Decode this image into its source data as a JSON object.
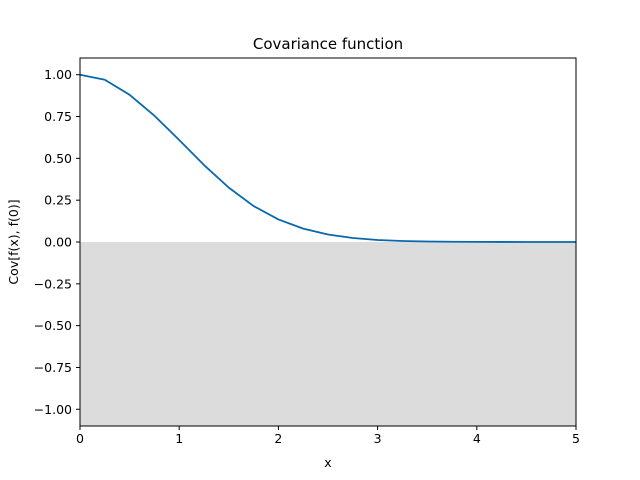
{
  "chart_data": {
    "type": "line",
    "title": "Covariance function",
    "xlabel": "x",
    "ylabel": "Cov[f(x), f(0)]",
    "xlim": [
      0,
      5
    ],
    "ylim": [
      -1.1,
      1.1
    ],
    "xticks": [
      0,
      1,
      2,
      3,
      4,
      5
    ],
    "xtick_labels": [
      "0",
      "1",
      "2",
      "3",
      "4",
      "5"
    ],
    "yticks": [
      -1.0,
      -0.75,
      -0.5,
      -0.25,
      0.0,
      0.25,
      0.5,
      0.75,
      1.0
    ],
    "ytick_labels": [
      "−1.00",
      "−0.75",
      "−0.50",
      "−0.25",
      "0.00",
      "0.25",
      "0.50",
      "0.75",
      "1.00"
    ],
    "grid": false,
    "shaded_region": {
      "from_y": -1.1,
      "to_y": 0.0,
      "color": "#dcdcdc"
    },
    "series": [
      {
        "color": "#0868ac",
        "x": [
          0,
          0.25,
          0.5,
          0.75,
          1.0,
          1.25,
          1.5,
          1.75,
          2.0,
          2.25,
          2.5,
          2.75,
          3.0,
          3.25,
          3.5,
          3.75,
          4.0,
          4.25,
          4.5,
          4.75,
          5.0
        ],
        "y": [
          1.0,
          0.97,
          0.88,
          0.755,
          0.61,
          0.46,
          0.325,
          0.215,
          0.135,
          0.08,
          0.045,
          0.024,
          0.012,
          0.006,
          0.003,
          0.0015,
          0.0007,
          0.0003,
          0.0001,
          0.0,
          0.0
        ]
      }
    ]
  }
}
